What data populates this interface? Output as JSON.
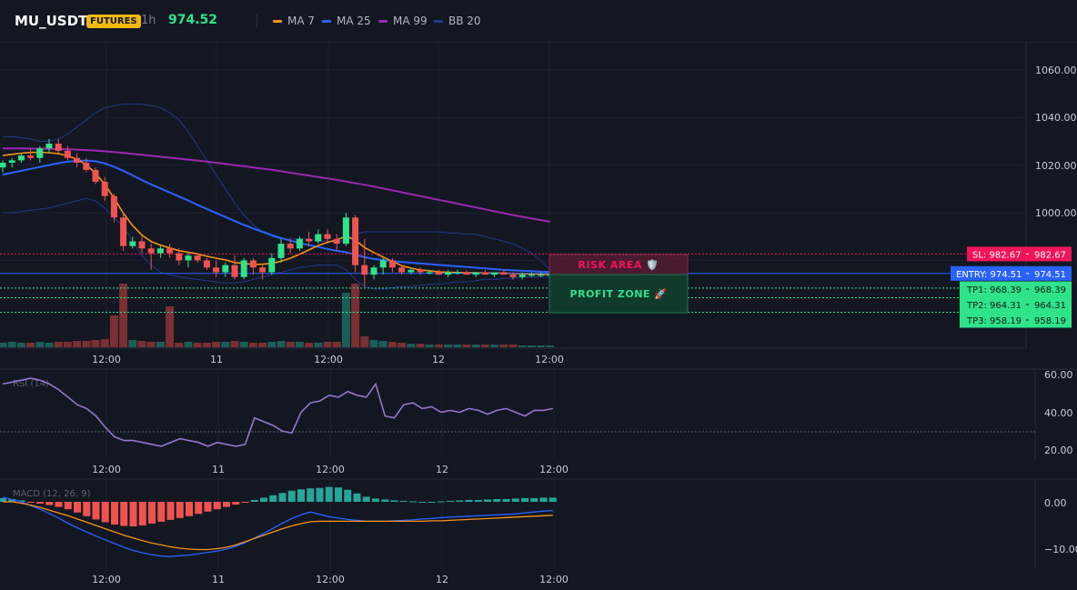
{
  "header": {
    "symbol": "MU_USDT",
    "badge": "FUTURES",
    "timeframe": "1h",
    "price": "974.52",
    "legend": [
      {
        "label": "MA 7",
        "color": "#f7931a"
      },
      {
        "label": "MA 25",
        "color": "#2962ff"
      },
      {
        "label": "MA 99",
        "color": "#9c27b0"
      },
      {
        "label": "BB 20",
        "color": "#1e3a8a"
      }
    ]
  },
  "price_axis": [
    "1060.00",
    "1040.00",
    "1020.00",
    "1000.00"
  ],
  "time_axis": [
    "12:00",
    "11",
    "12:00",
    "12",
    "12:00"
  ],
  "rsi": {
    "label": "RSI (14)",
    "axis": [
      "60.00",
      "40.00",
      "20.00"
    ]
  },
  "macd": {
    "label": "MACD (12, 26, 9)",
    "axis": [
      "0.00",
      "−10.00"
    ]
  },
  "zones": {
    "risk": "RISK AREA 🛡️",
    "profit": "PROFIT ZONE 🚀"
  },
  "levels": {
    "sl": {
      "tag": "SL: 982.67",
      "value": "982.67",
      "price": 982.67
    },
    "entry": {
      "tag": "ENTRY: 974.51",
      "value": "974.51",
      "price": 974.51
    },
    "tp": [
      {
        "tag": "TP1: 968.39",
        "value": "968.39",
        "price": 968.39
      },
      {
        "tag": "TP2: 964.31",
        "value": "964.31",
        "price": 964.31
      },
      {
        "tag": "TP3: 958.19",
        "value": "958.19",
        "price": 958.19
      }
    ]
  },
  "colors": {
    "up": "#26a69a",
    "up_bright": "#2ee38a",
    "down": "#ef5350",
    "sl": "#f0145a",
    "entry": "#2962ff",
    "tp": "#2ee38a"
  },
  "chart_data": {
    "type": "candlestick",
    "candles": [
      {
        "o": 1019,
        "h": 1022,
        "l": 1017,
        "c": 1021
      },
      {
        "o": 1021,
        "h": 1023,
        "l": 1019,
        "c": 1022
      },
      {
        "o": 1022,
        "h": 1025,
        "l": 1021,
        "c": 1024
      },
      {
        "o": 1024,
        "h": 1027,
        "l": 1022,
        "c": 1023
      },
      {
        "o": 1023,
        "h": 1028,
        "l": 1021,
        "c": 1027
      },
      {
        "o": 1027,
        "h": 1031,
        "l": 1025,
        "c": 1029
      },
      {
        "o": 1029,
        "h": 1031,
        "l": 1025,
        "c": 1026
      },
      {
        "o": 1026,
        "h": 1028,
        "l": 1022,
        "c": 1023
      },
      {
        "o": 1023,
        "h": 1025,
        "l": 1019,
        "c": 1021
      },
      {
        "o": 1021,
        "h": 1023,
        "l": 1017,
        "c": 1018
      },
      {
        "o": 1018,
        "h": 1019,
        "l": 1012,
        "c": 1013
      },
      {
        "o": 1013,
        "h": 1015,
        "l": 1005,
        "c": 1007
      },
      {
        "o": 1007,
        "h": 1008,
        "l": 996,
        "c": 998
      },
      {
        "o": 998,
        "h": 1000,
        "l": 984,
        "c": 986
      },
      {
        "o": 986,
        "h": 990,
        "l": 985,
        "c": 988
      },
      {
        "o": 988,
        "h": 990,
        "l": 983,
        "c": 985
      },
      {
        "o": 985,
        "h": 987,
        "l": 976,
        "c": 983
      },
      {
        "o": 983,
        "h": 986,
        "l": 981,
        "c": 985
      },
      {
        "o": 985,
        "h": 987,
        "l": 981,
        "c": 983
      },
      {
        "o": 983,
        "h": 985,
        "l": 978,
        "c": 980
      },
      {
        "o": 980,
        "h": 983,
        "l": 977,
        "c": 982
      },
      {
        "o": 982,
        "h": 983,
        "l": 979,
        "c": 980
      },
      {
        "o": 980,
        "h": 981,
        "l": 976,
        "c": 977
      },
      {
        "o": 977,
        "h": 980,
        "l": 973,
        "c": 975
      },
      {
        "o": 975,
        "h": 979,
        "l": 973,
        "c": 978
      },
      {
        "o": 978,
        "h": 982,
        "l": 972,
        "c": 973
      },
      {
        "o": 973,
        "h": 981,
        "l": 972,
        "c": 980
      },
      {
        "o": 980,
        "h": 981,
        "l": 974,
        "c": 977
      },
      {
        "o": 977,
        "h": 978,
        "l": 972,
        "c": 975
      },
      {
        "o": 975,
        "h": 983,
        "l": 974,
        "c": 981
      },
      {
        "o": 981,
        "h": 989,
        "l": 979,
        "c": 987
      },
      {
        "o": 987,
        "h": 989,
        "l": 983,
        "c": 985
      },
      {
        "o": 985,
        "h": 990,
        "l": 984,
        "c": 989
      },
      {
        "o": 989,
        "h": 992,
        "l": 986,
        "c": 988
      },
      {
        "o": 988,
        "h": 993,
        "l": 987,
        "c": 991
      },
      {
        "o": 991,
        "h": 993,
        "l": 987,
        "c": 989
      },
      {
        "o": 989,
        "h": 991,
        "l": 984,
        "c": 987
      },
      {
        "o": 987,
        "h": 1000,
        "l": 986,
        "c": 998
      },
      {
        "o": 998,
        "h": 999,
        "l": 975,
        "c": 978
      },
      {
        "o": 978,
        "h": 989,
        "l": 969,
        "c": 974
      },
      {
        "o": 974,
        "h": 978,
        "l": 972,
        "c": 977
      },
      {
        "o": 977,
        "h": 981,
        "l": 974,
        "c": 980
      },
      {
        "o": 980,
        "h": 981,
        "l": 975,
        "c": 977
      },
      {
        "o": 977,
        "h": 978,
        "l": 974,
        "c": 975
      },
      {
        "o": 975,
        "h": 977,
        "l": 974,
        "c": 976
      },
      {
        "o": 976,
        "h": 977,
        "l": 974,
        "c": 975
      },
      {
        "o": 975,
        "h": 976,
        "l": 974,
        "c": 975
      },
      {
        "o": 975,
        "h": 976,
        "l": 974,
        "c": 974
      },
      {
        "o": 974,
        "h": 976,
        "l": 973,
        "c": 975
      },
      {
        "o": 975,
        "h": 976,
        "l": 974,
        "c": 975
      },
      {
        "o": 975,
        "h": 976,
        "l": 974,
        "c": 974
      },
      {
        "o": 974,
        "h": 975,
        "l": 973,
        "c": 975
      },
      {
        "o": 975,
        "h": 976,
        "l": 974,
        "c": 974
      },
      {
        "o": 974,
        "h": 975,
        "l": 973,
        "c": 975
      },
      {
        "o": 975,
        "h": 976,
        "l": 974,
        "c": 974
      },
      {
        "o": 974,
        "h": 975,
        "l": 972,
        "c": 973
      },
      {
        "o": 973,
        "h": 975,
        "l": 972,
        "c": 974
      },
      {
        "o": 974,
        "h": 975,
        "l": 973,
        "c": 974
      },
      {
        "o": 974,
        "h": 975,
        "l": 973,
        "c": 974
      },
      {
        "o": 974,
        "h": 975,
        "l": 973,
        "c": 974
      }
    ],
    "volume": [
      0.05,
      0.06,
      0.05,
      0.05,
      0.06,
      0.05,
      0.06,
      0.06,
      0.07,
      0.07,
      0.08,
      0.09,
      0.1,
      0.11,
      0.08,
      0.07,
      0.06,
      0.06,
      0.06,
      0.05,
      0.06,
      0.05,
      0.05,
      0.06,
      0.06,
      0.07,
      0.06,
      0.05,
      0.05,
      0.06,
      0.07,
      0.06,
      0.06,
      0.05,
      0.05,
      0.06,
      0.06,
      0.1,
      0.2,
      0.12,
      0.08,
      0.07,
      0.06,
      0.05,
      0.04,
      0.04,
      0.03,
      0.03,
      0.03,
      0.03,
      0.03,
      0.03,
      0.03,
      0.03,
      0.03,
      0.03,
      0.02,
      0.02,
      0.02,
      0.02
    ],
    "volume_spikes": {
      "12": 0.35,
      "13": 0.7,
      "18": 0.45,
      "37": 0.6,
      "38": 0.7
    },
    "ma7": [
      1024,
      1024.5,
      1025,
      1025.3,
      1025.4,
      1025.2,
      1024.8,
      1023.9,
      1022.4,
      1020.2,
      1016.6,
      1011.9,
      1006.2,
      999.8,
      994.6,
      990.6,
      987.9,
      986.4,
      985.2,
      984.1,
      983.4,
      982.7,
      981.7,
      980.9,
      980.2,
      979.1,
      978.7,
      978.3,
      978.4,
      978.7,
      979.6,
      980.9,
      982.6,
      984.4,
      986.2,
      987.6,
      988.6,
      990.1,
      988.5,
      985.4,
      983.3,
      981.4,
      979.5,
      977.8,
      976.7,
      976,
      975.6,
      975.2,
      975,
      974.9,
      974.8,
      974.8,
      974.7,
      974.7,
      974.6,
      974.5,
      974.4,
      974.3,
      974.2,
      974.1
    ],
    "ma25": [
      1016,
      1016.8,
      1017.6,
      1018.4,
      1019.2,
      1020,
      1020.8,
      1021.4,
      1021.8,
      1021.9,
      1021.6,
      1020.7,
      1019.3,
      1017.6,
      1015.7,
      1013.7,
      1011.9,
      1010.2,
      1008.5,
      1006.8,
      1005.1,
      1003.3,
      1001.6,
      999.9,
      998.2,
      996.5,
      994.9,
      993.4,
      992,
      990.6,
      989.4,
      988.3,
      987.3,
      986.4,
      985.6,
      984.8,
      984,
      983.4,
      982.4,
      981.3,
      980.6,
      980.1,
      979.7,
      979.3,
      979,
      978.7,
      978.4,
      978.1,
      977.8,
      977.5,
      977.2,
      976.9,
      976.6,
      976.3,
      976,
      975.8,
      975.6,
      975.5,
      975.3,
      975.1
    ],
    "ma99": [
      1027,
      1027,
      1027,
      1026.9,
      1026.9,
      1026.8,
      1026.7,
      1026.6,
      1026.5,
      1026.3,
      1026.1,
      1025.8,
      1025.5,
      1025.1,
      1024.7,
      1024.3,
      1023.9,
      1023.5,
      1023.1,
      1022.7,
      1022.3,
      1021.9,
      1021.5,
      1021,
      1020.5,
      1020,
      1019.5,
      1019,
      1018.5,
      1018,
      1017.4,
      1016.8,
      1016.2,
      1015.6,
      1015,
      1014.4,
      1013.8,
      1013.1,
      1012.4,
      1011.7,
      1011,
      1010.2,
      1009.4,
      1008.6,
      1007.8,
      1007,
      1006.2,
      1005.4,
      1004.6,
      1003.8,
      1003,
      1002.2,
      1001.4,
      1000.6,
      999.8,
      999,
      998.3,
      997.6,
      996.9,
      996.2
    ],
    "bb_upper": [
      1032,
      1032,
      1031.5,
      1031,
      1030,
      1030,
      1031,
      1033,
      1036,
      1039,
      1042,
      1044,
      1045,
      1045.5,
      1045.7,
      1045.5,
      1045,
      1044,
      1042,
      1039,
      1034,
      1028,
      1022,
      1016,
      1010,
      1004,
      999,
      995,
      992,
      990,
      989,
      989,
      989,
      989,
      988,
      988,
      987.5,
      989,
      991,
      992,
      992,
      992,
      992,
      992,
      992,
      992,
      992,
      992,
      991.5,
      991.5,
      991,
      991,
      990,
      989,
      988,
      987,
      985,
      983,
      980,
      976
    ],
    "bb_lower": [
      1000,
      1000,
      1000.5,
      1001,
      1001.5,
      1002,
      1003,
      1004,
      1005,
      1006,
      1005,
      1002,
      998,
      994,
      988,
      982,
      978,
      975,
      974,
      973,
      972.5,
      972,
      971.5,
      971,
      970.5,
      970.5,
      971,
      972,
      973,
      974,
      975,
      976,
      977,
      977.5,
      978,
      978,
      978,
      976,
      972,
      969,
      968,
      968,
      968.5,
      969,
      969,
      969.5,
      970,
      970,
      970.5,
      971,
      971,
      971.5,
      972,
      972,
      972.5,
      972.5,
      973,
      973,
      973,
      973
    ],
    "rsi": [
      55,
      56,
      57,
      58,
      57,
      55,
      52,
      48,
      44,
      42,
      38,
      32,
      27,
      25,
      25,
      24,
      23,
      22,
      24,
      26,
      25,
      24,
      22,
      24,
      23,
      22,
      23,
      37,
      35,
      33,
      30,
      29,
      40,
      45,
      46,
      49,
      48,
      51,
      49,
      48,
      55,
      38,
      37,
      44,
      45,
      42,
      43,
      40,
      41,
      40,
      42,
      41,
      39,
      41,
      42,
      40,
      38,
      41,
      41,
      42
    ],
    "macd_line": [
      1,
      0.5,
      0,
      -0.8,
      -1.6,
      -2.5,
      -3.5,
      -4.6,
      -5.6,
      -6.5,
      -7.4,
      -8.2,
      -9,
      -9.8,
      -10.5,
      -11,
      -11.4,
      -11.7,
      -11.8,
      -11.6,
      -11.5,
      -11.2,
      -10.9,
      -10.6,
      -10.2,
      -9.6,
      -8.8,
      -7.8,
      -6.8,
      -5.7,
      -4.6,
      -3.6,
      -2.8,
      -2.2,
      -2.7,
      -3.2,
      -3.5,
      -3.8,
      -4,
      -4.2,
      -4.2,
      -4.2,
      -4.1,
      -4,
      -3.9,
      -3.7,
      -3.6,
      -3.4,
      -3.3,
      -3.2,
      -3.1,
      -3,
      -2.9,
      -2.8,
      -2.7,
      -2.6,
      -2.4,
      -2.2,
      -2,
      -1.9
    ],
    "macd_signal": [
      0,
      0,
      -0.3,
      -0.7,
      -1.2,
      -1.8,
      -2.4,
      -3,
      -3.7,
      -4.4,
      -5.1,
      -5.8,
      -6.5,
      -7.2,
      -7.8,
      -8.4,
      -8.9,
      -9.3,
      -9.7,
      -10,
      -10.2,
      -10.3,
      -10.3,
      -10.1,
      -9.8,
      -9.3,
      -8.6,
      -7.9,
      -7.2,
      -6.5,
      -5.8,
      -5.2,
      -4.7,
      -4.3,
      -4.2,
      -4.2,
      -4.2,
      -4.2,
      -4.2,
      -4.2,
      -4.2,
      -4.2,
      -4.2,
      -4.2,
      -4.2,
      -4.2,
      -4.1,
      -4.1,
      -4,
      -3.9,
      -3.8,
      -3.7,
      -3.6,
      -3.5,
      -3.4,
      -3.3,
      -3.2,
      -3.1,
      -3,
      -2.9
    ],
    "macd_hist": [
      0.8,
      0.6,
      0.3,
      -0.1,
      -0.4,
      -0.7,
      -1.1,
      -1.6,
      -2.3,
      -3.1,
      -3.8,
      -4.4,
      -4.9,
      -5.2,
      -5.3,
      -5.1,
      -4.7,
      -4.3,
      -3.9,
      -3.5,
      -3.1,
      -2.6,
      -2.1,
      -1.6,
      -1.1,
      -0.6,
      -0.1,
      0.4,
      0.9,
      1.4,
      1.9,
      2.4,
      2.7,
      2.9,
      3,
      3.2,
      3.1,
      2.6,
      1.8,
      1.1,
      0.7,
      0.5,
      0.3,
      0.2,
      0.1,
      0,
      0,
      0.1,
      0.2,
      0.3,
      0.4,
      0.4,
      0.5,
      0.6,
      0.6,
      0.7,
      0.8,
      0.8,
      0.9,
      0.9
    ]
  }
}
